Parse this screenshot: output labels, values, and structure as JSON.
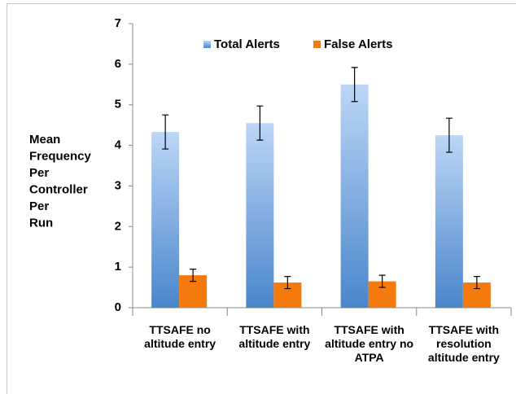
{
  "chart_data": {
    "type": "bar",
    "ylabel": [
      "Mean",
      "Frequency",
      "Per",
      "Controller",
      "Per",
      "Run"
    ],
    "categories": [
      "TTSAFE no altitude entry",
      "TTSAFE with altitude entry",
      "TTSAFE with altitude entry no ATPA",
      "TTSAFE with resolution altitude entry"
    ],
    "series": [
      {
        "name": "Total Alerts",
        "color": "#4a86cc",
        "values": [
          4.33,
          4.55,
          5.5,
          4.25
        ],
        "errors": [
          0.42,
          0.42,
          0.42,
          0.42
        ]
      },
      {
        "name": "False Alerts",
        "color": "#f57a0e",
        "values": [
          0.8,
          0.62,
          0.65,
          0.62
        ],
        "errors": [
          0.15,
          0.15,
          0.15,
          0.15
        ]
      }
    ],
    "ylim": [
      0,
      7
    ],
    "yticks": [
      0,
      1,
      2,
      3,
      4,
      5,
      6,
      7
    ],
    "grid": false,
    "legend": "top"
  }
}
